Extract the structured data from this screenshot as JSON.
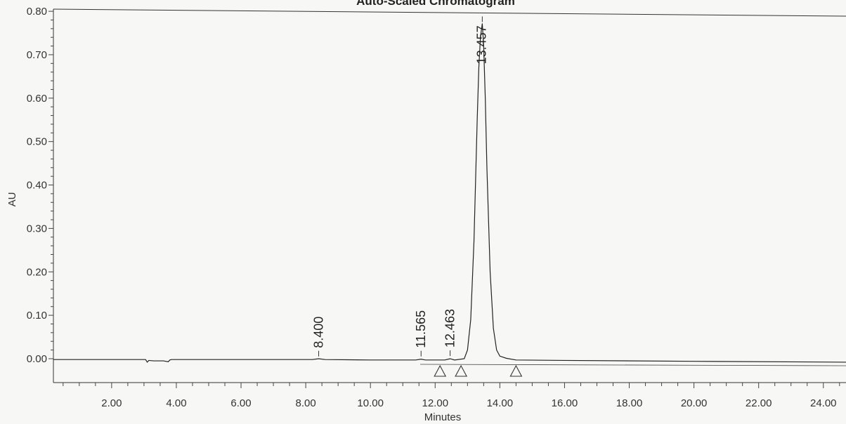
{
  "chart_data": {
    "type": "line",
    "title": "Auto-Scaled Chromatogram",
    "xlabel": "Minutes",
    "ylabel": "AU",
    "xlim": [
      0.2,
      24.7
    ],
    "ylim": [
      -0.055,
      0.805
    ],
    "x_ticks": [
      2.0,
      4.0,
      6.0,
      8.0,
      10.0,
      12.0,
      14.0,
      16.0,
      18.0,
      20.0,
      22.0,
      24.0
    ],
    "x_tick_labels": [
      "2.00",
      "4.00",
      "6.00",
      "8.00",
      "10.00",
      "12.00",
      "14.00",
      "16.00",
      "18.00",
      "20.00",
      "22.00",
      "24.00"
    ],
    "y_ticks": [
      0.0,
      0.1,
      0.2,
      0.3,
      0.4,
      0.5,
      0.6,
      0.7,
      0.8
    ],
    "y_tick_labels": [
      "0.00",
      "0.10",
      "0.20",
      "0.30",
      "0.40",
      "0.50",
      "0.60",
      "0.70",
      "0.80"
    ],
    "grid": false,
    "peaks": [
      {
        "retention_time": 8.4,
        "label": "8.400",
        "height": 0.002
      },
      {
        "retention_time": 11.565,
        "label": "11.565",
        "height": 0.002
      },
      {
        "retention_time": 12.463,
        "label": "12.463",
        "height": 0.003
      },
      {
        "retention_time": 13.457,
        "label": "13.457",
        "height": 0.772
      }
    ],
    "integration_markers": [
      12.15,
      12.8,
      14.5
    ],
    "series": [
      {
        "x": [
          0.2,
          2.0,
          3.05,
          3.1,
          3.15,
          3.3,
          3.6,
          3.75,
          3.8,
          3.85,
          4.0,
          6.0,
          8.2,
          8.4,
          8.6,
          10.0,
          11.4,
          11.565,
          11.7,
          12.3,
          12.463,
          12.6,
          12.9,
          13.0,
          13.1,
          13.2,
          13.3,
          13.35,
          13.4,
          13.457,
          13.5,
          13.55,
          13.6,
          13.7,
          13.8,
          13.9,
          14.0,
          14.2,
          14.5,
          16.0,
          20.0,
          24.7
        ],
        "y": [
          -0.002,
          -0.002,
          -0.002,
          -0.008,
          -0.004,
          -0.005,
          -0.005,
          -0.007,
          -0.003,
          -0.002,
          -0.002,
          -0.002,
          -0.002,
          0.0,
          -0.002,
          -0.003,
          -0.003,
          -0.001,
          -0.003,
          -0.003,
          0.0,
          -0.003,
          0.0,
          0.02,
          0.09,
          0.27,
          0.55,
          0.67,
          0.74,
          0.772,
          0.72,
          0.6,
          0.44,
          0.2,
          0.07,
          0.02,
          0.006,
          0.001,
          -0.003,
          -0.004,
          -0.006,
          -0.008
        ]
      }
    ]
  }
}
